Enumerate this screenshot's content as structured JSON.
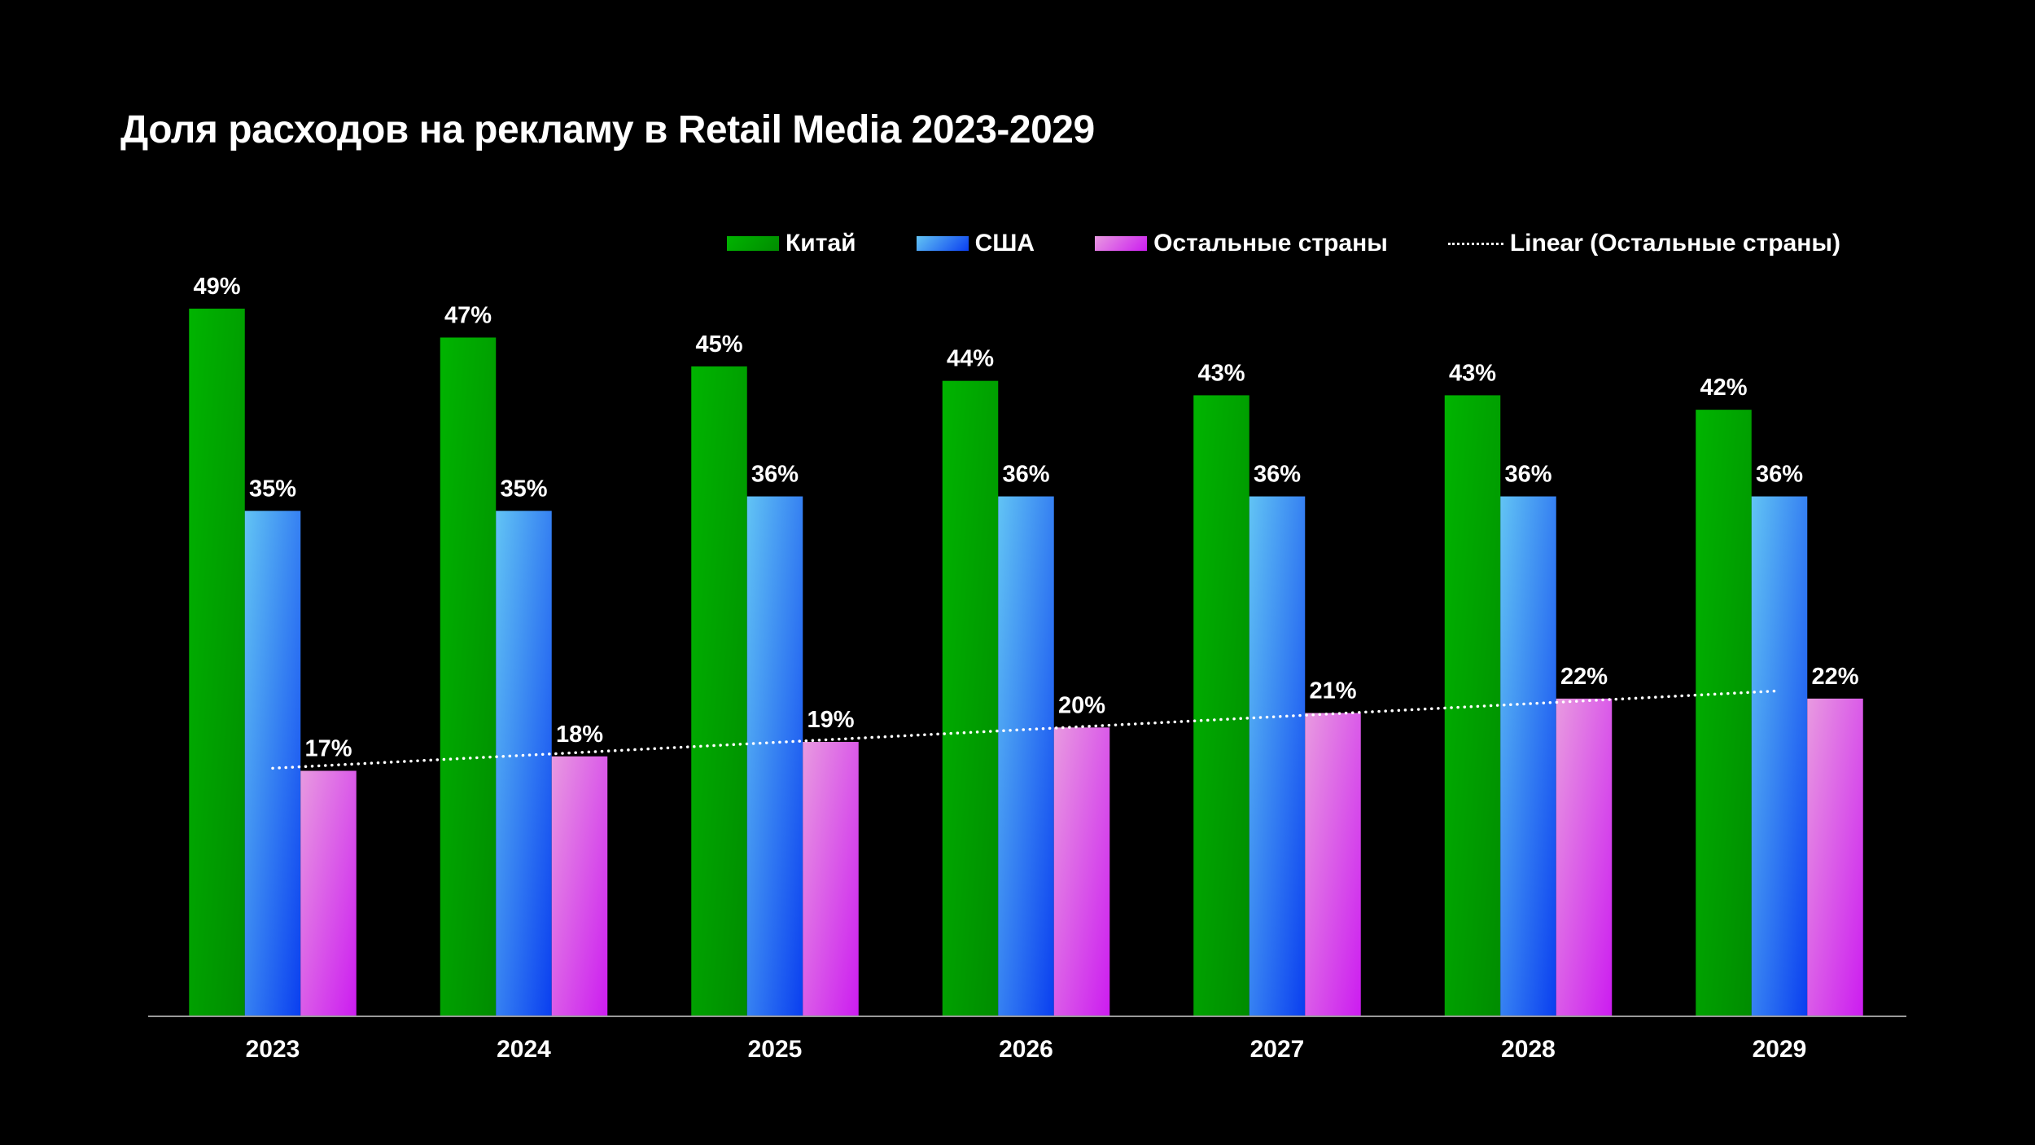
{
  "chart_data": {
    "type": "bar",
    "title": "Доля расходов на рекламу в Retail Media 2023-2029",
    "categories": [
      "2023",
      "2024",
      "2025",
      "2026",
      "2027",
      "2028",
      "2029"
    ],
    "series": [
      {
        "name": "Китай",
        "values": [
          49,
          47,
          45,
          44,
          43,
          43,
          42
        ],
        "color_top": "#00b400",
        "color_bottom": "#008c00"
      },
      {
        "name": "США",
        "values": [
          35,
          35,
          36,
          36,
          36,
          36,
          36
        ],
        "color_top": "#62c4f4",
        "color_bottom": "#0a3ef0"
      },
      {
        "name": "Остальные страны",
        "values": [
          17,
          18,
          19,
          20,
          21,
          22,
          22
        ],
        "color_top": "#e89ae0",
        "color_bottom": "#cc1cf0"
      }
    ],
    "trendline": {
      "name": "Linear (Остальные страны)",
      "type": "linear",
      "series": "Остальные страны"
    },
    "value_format": "percent",
    "ylim": [
      0,
      49
    ],
    "grid": false,
    "legend_position": "top-right"
  }
}
